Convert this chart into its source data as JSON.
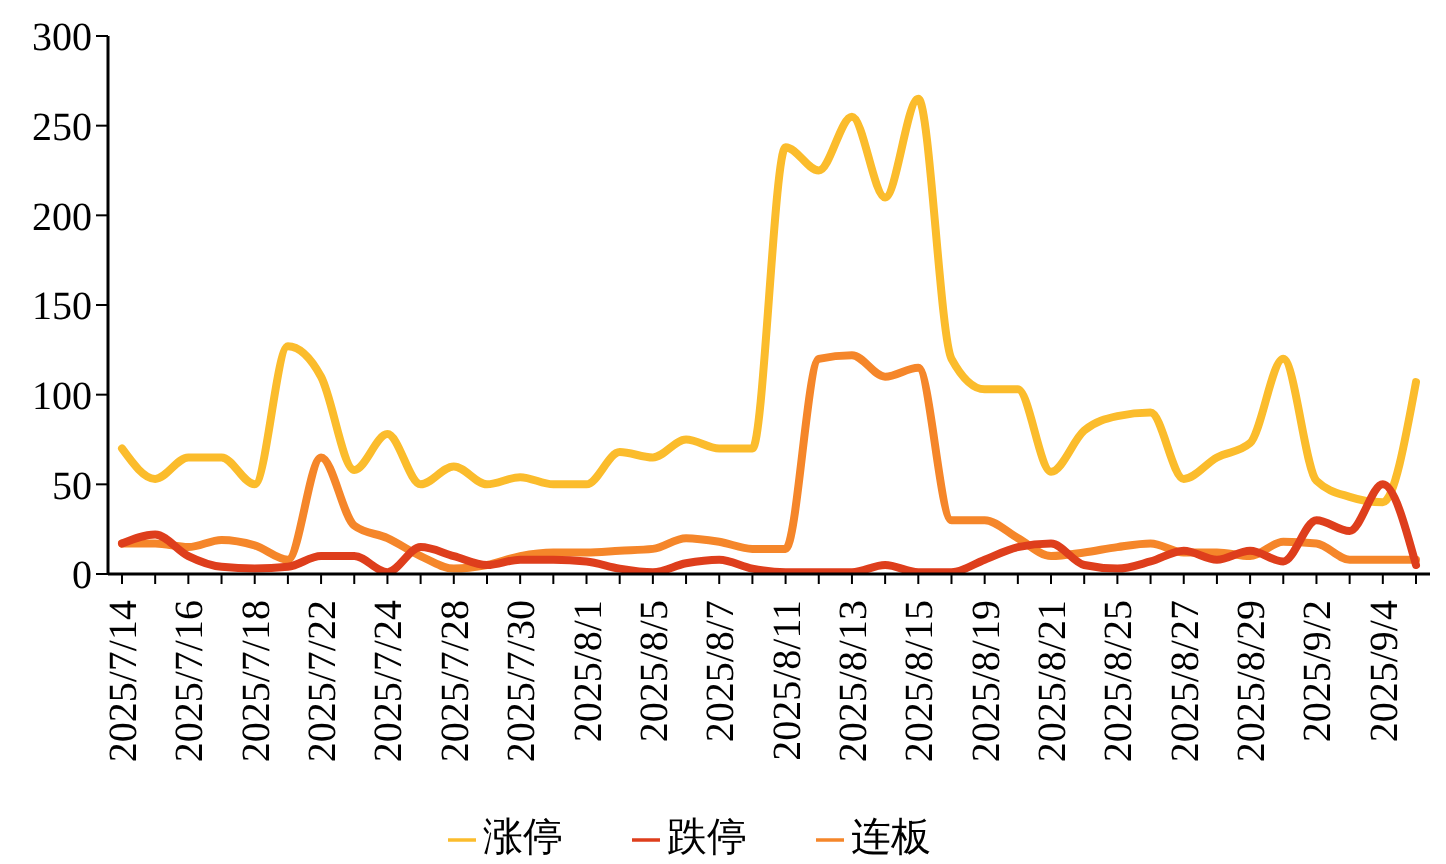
{
  "chart_data": {
    "type": "line",
    "categories": [
      "2025/7/14",
      null,
      "2025/7/16",
      null,
      "2025/7/18",
      null,
      "2025/7/22",
      null,
      "2025/7/24",
      null,
      "2025/7/28",
      null,
      "2025/7/30",
      null,
      "2025/8/1",
      null,
      "2025/8/5",
      null,
      "2025/8/7",
      null,
      "2025/8/11",
      null,
      "2025/8/13",
      null,
      "2025/8/15",
      null,
      "2025/8/19",
      null,
      "2025/8/21",
      null,
      "2025/8/25",
      null,
      "2025/8/27",
      null,
      "2025/8/29",
      null,
      "2025/9/2",
      null,
      "2025/9/4",
      null
    ],
    "series": [
      {
        "name": "连板",
        "color": "#f5862a",
        "values": [
          17,
          17,
          15,
          19,
          16,
          8,
          65,
          27,
          20,
          10,
          3,
          5,
          10,
          12,
          12,
          13,
          14,
          20,
          18,
          14,
          14,
          120,
          122,
          110,
          115,
          30,
          30,
          20,
          10,
          12,
          15,
          17,
          12,
          12,
          10,
          18,
          17,
          8,
          8,
          8
        ]
      },
      {
        "name": "涨停",
        "color": "#fbbc2c",
        "values": [
          70,
          53,
          65,
          65,
          50,
          127,
          110,
          58,
          78,
          50,
          60,
          50,
          54,
          50,
          50,
          68,
          65,
          75,
          70,
          70,
          238,
          225,
          255,
          210,
          265,
          120,
          103,
          103,
          57,
          80,
          88,
          90,
          53,
          65,
          73,
          120,
          52,
          43,
          40,
          107
        ]
      },
      {
        "name": "跌停",
        "color": "#de3e1c",
        "values": [
          17,
          22,
          10,
          4,
          3,
          4,
          10,
          10,
          1,
          15,
          10,
          5,
          8,
          8,
          7,
          3,
          1,
          6,
          8,
          3,
          1,
          1,
          1,
          5,
          1,
          1,
          8,
          15,
          17,
          5,
          3,
          7,
          13,
          8,
          13,
          7,
          30,
          24,
          50,
          5
        ]
      }
    ],
    "ylim": [
      0,
      300
    ],
    "yticks": [
      0,
      50,
      100,
      150,
      200,
      250,
      300
    ],
    "grid": false,
    "legend": "bottom",
    "marker": "none",
    "line_style": "solid"
  }
}
